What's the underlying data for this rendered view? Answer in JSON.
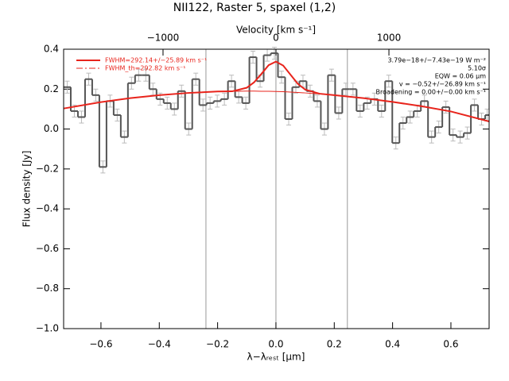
{
  "chart_data": {
    "type": "histogram",
    "title": "NII122, Raster 5, spaxel (1,2)",
    "xlabel": "λ−λᵣₑₛₜ [μm]",
    "ylabel": "Flux density [Jy]",
    "x2label": "Velocity [km s⁻¹]",
    "bins": [
      -0.728,
      -0.7035,
      -0.679,
      -0.6545,
      -0.63,
      -0.6055,
      -0.581,
      -0.5565,
      -0.532,
      -0.5075,
      -0.483,
      -0.4585,
      -0.434,
      -0.4095,
      -0.385,
      -0.3605,
      -0.336,
      -0.3115,
      -0.287,
      -0.2625,
      -0.238,
      -0.2135,
      -0.189,
      -0.1645,
      -0.14,
      -0.1155,
      -0.091,
      -0.0665,
      -0.042,
      -0.0175,
      0.007,
      0.0315,
      0.056,
      0.0805,
      0.105,
      0.1295,
      0.154,
      0.1785,
      0.203,
      0.2275,
      0.252,
      0.2765,
      0.301,
      0.3255,
      0.35,
      0.3745,
      0.399,
      0.4235,
      0.448,
      0.4725,
      0.497,
      0.5215,
      0.546,
      0.5705,
      0.595,
      0.6195,
      0.644,
      0.6685,
      0.693,
      0.7175,
      0.731
    ],
    "values": [
      0.21,
      0.09,
      0.06,
      0.25,
      0.17,
      -0.19,
      0.14,
      0.07,
      -0.04,
      0.23,
      0.27,
      0.27,
      0.2,
      0.15,
      0.13,
      0.1,
      0.19,
      0.0,
      0.25,
      0.12,
      0.13,
      0.14,
      0.15,
      0.24,
      0.16,
      0.13,
      0.36,
      0.24,
      0.37,
      0.38,
      0.26,
      0.05,
      0.21,
      0.24,
      0.19,
      0.14,
      0.0,
      0.27,
      0.08,
      0.2,
      0.2,
      0.09,
      0.13,
      0.15,
      0.09,
      0.24,
      -0.07,
      0.03,
      0.06,
      0.09,
      0.14,
      -0.04,
      0.01,
      0.11,
      -0.03,
      -0.04,
      -0.02,
      0.12,
      0.05,
      0.07
    ],
    "error": 0.03,
    "color": "#555555",
    "error_color": "#bbbbbb",
    "fits": [
      {
        "name": "FWHM=292.14+/−25.89 km s⁻¹",
        "color": "#e8241c",
        "width": 2,
        "x": [
          -0.728,
          -0.6,
          -0.5,
          -0.4,
          -0.3,
          -0.2,
          -0.15,
          -0.1,
          -0.075,
          -0.05,
          -0.025,
          0,
          0.025,
          0.05,
          0.075,
          0.1,
          0.15,
          0.2,
          0.3,
          0.4,
          0.5,
          0.6,
          0.731
        ],
        "values": [
          0.103,
          0.135,
          0.155,
          0.17,
          0.181,
          0.188,
          0.189,
          0.207,
          0.234,
          0.276,
          0.32,
          0.338,
          0.318,
          0.272,
          0.227,
          0.198,
          0.177,
          0.17,
          0.155,
          0.136,
          0.114,
          0.088,
          0.038
        ]
      },
      {
        "name": "FWHM_th=292.82 km s⁻¹",
        "color": "#e8241c",
        "width": 1,
        "x": [
          -0.728,
          -0.6,
          -0.5,
          -0.4,
          -0.3,
          -0.2,
          -0.15,
          -0.1,
          -0.075,
          -0.05,
          -0.025,
          0,
          0.025,
          0.05,
          0.075,
          0.1,
          0.15,
          0.2,
          0.3,
          0.4,
          0.5,
          0.6,
          0.731
        ],
        "values": [
          0.103,
          0.135,
          0.155,
          0.17,
          0.181,
          0.188,
          0.189,
          0.19,
          0.19,
          0.189,
          0.189,
          0.188,
          0.187,
          0.185,
          0.183,
          0.181,
          0.176,
          0.17,
          0.155,
          0.136,
          0.114,
          0.088,
          0.038
        ]
      }
    ],
    "vlines": [
      -0.24,
      0,
      0.245
    ],
    "annotations": [
      "3.79e−18+/−7.43e−19 W m⁻²",
      "5.10σ",
      "EQW = 0.06 μm",
      "v = −0.52+/−26.89 km s⁻¹",
      "Broadening = 0.00+/−0.00 km s⁻¹"
    ],
    "xlim": [
      -0.728,
      0.731
    ],
    "ylim": [
      -1.0,
      0.4
    ],
    "x2lim": [
      -1880,
      1887
    ],
    "xticks": [
      {
        "value": -0.6,
        "label": "−0.6"
      },
      {
        "value": -0.4,
        "label": "−0.4"
      },
      {
        "value": -0.2,
        "label": "−0.2"
      },
      {
        "value": 0,
        "label": "0.0"
      },
      {
        "value": 0.2,
        "label": "0.2"
      },
      {
        "value": 0.4,
        "label": "0.4"
      },
      {
        "value": 0.6,
        "label": "0.6"
      }
    ],
    "yticks": [
      {
        "value": -1.0,
        "label": "−1.0"
      },
      {
        "value": -0.8,
        "label": "−0.8"
      },
      {
        "value": -0.6,
        "label": "−0.6"
      },
      {
        "value": -0.4,
        "label": "−0.4"
      },
      {
        "value": -0.2,
        "label": "−0.2"
      },
      {
        "value": 0,
        "label": "0.0"
      },
      {
        "value": 0.2,
        "label": "0.2"
      },
      {
        "value": 0.4,
        "label": "0.4"
      }
    ],
    "x2ticks": [
      {
        "value": -1000,
        "label": "−1000"
      },
      0,
      1000
    ]
  }
}
